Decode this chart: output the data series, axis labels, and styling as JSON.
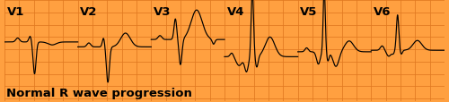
{
  "background_color": "#FFA040",
  "grid_color": "#E07820",
  "line_color": "#000000",
  "text_color": "#000000",
  "title_text": "Normal R wave progression",
  "title_fontsize": 9.5,
  "label_fontsize": 9.5,
  "labels": [
    "V1",
    "V2",
    "V3",
    "V4",
    "V5",
    "V6"
  ],
  "fig_width": 5.0,
  "fig_height": 1.15,
  "dpi": 100,
  "num_leads": 6,
  "ylim": [
    -1.0,
    1.0
  ],
  "xlim": [
    0.0,
    6.0
  ]
}
